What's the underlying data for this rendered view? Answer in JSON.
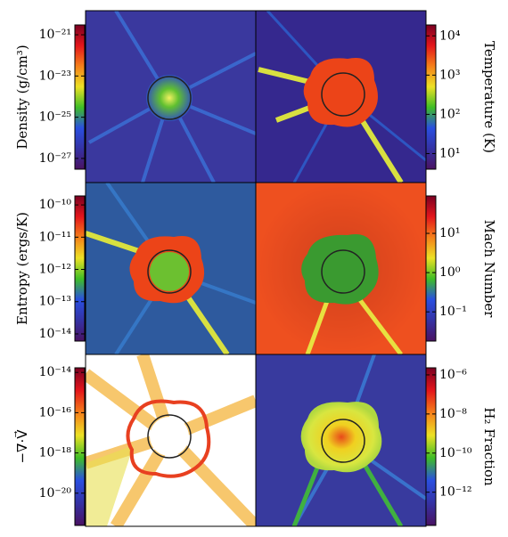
{
  "chart_data": [
    {
      "type": "colorbar",
      "label": "Density (g/cm³)",
      "side": "left",
      "log_scale": true,
      "ylim": [
        3e-28,
        3e-21
      ],
      "yticks": [
        {
          "value": 1e-21,
          "label": "10⁻²¹"
        },
        {
          "value": 1e-23,
          "label": "10⁻²³"
        },
        {
          "value": 1e-25,
          "label": "10⁻²⁵"
        },
        {
          "value": 1e-27,
          "label": "10⁻²⁷"
        }
      ],
      "colors": [
        "#7a0022",
        "#e3151b",
        "#f5801a",
        "#ece125",
        "#3fbe26",
        "#2a4fe0",
        "#3432a4",
        "#4a1262"
      ]
    },
    {
      "type": "colorbar",
      "label": "Temperature (K)",
      "side": "right",
      "log_scale": true,
      "ylim": [
        4,
        19000
      ],
      "yticks": [
        {
          "value": 10000,
          "label": "10⁴"
        },
        {
          "value": 1000,
          "label": "10³"
        },
        {
          "value": 100,
          "label": "10²"
        },
        {
          "value": 10,
          "label": "10¹"
        }
      ],
      "colors": [
        "#7a0022",
        "#e3151b",
        "#f5801a",
        "#ece125",
        "#3fbe26",
        "#2a4fe0",
        "#3432a4",
        "#4a1262"
      ]
    },
    {
      "type": "colorbar",
      "label": "Entropy (ergs/K)",
      "side": "left",
      "log_scale": true,
      "ylim": [
        6e-15,
        1.9e-10
      ],
      "yticks": [
        {
          "value": 1e-10,
          "label": "10⁻¹⁰"
        },
        {
          "value": 1e-11,
          "label": "10⁻¹¹"
        },
        {
          "value": 1e-12,
          "label": "10⁻¹²"
        },
        {
          "value": 1e-13,
          "label": "10⁻¹³"
        },
        {
          "value": 1e-14,
          "label": "10⁻¹⁴"
        }
      ],
      "colors": [
        "#7a0022",
        "#e3151b",
        "#f5801a",
        "#ece125",
        "#3fbe26",
        "#2a4fe0",
        "#3432a4",
        "#4a1262"
      ]
    },
    {
      "type": "colorbar",
      "label": "Mach Number",
      "side": "right",
      "log_scale": true,
      "ylim": [
        0.018,
        90
      ],
      "yticks": [
        {
          "value": 10,
          "label": "10¹"
        },
        {
          "value": 1,
          "label": "10⁰"
        },
        {
          "value": 0.1,
          "label": "10⁻¹"
        }
      ],
      "colors": [
        "#7a0022",
        "#e3151b",
        "#f5801a",
        "#ece125",
        "#3fbe26",
        "#2a4fe0",
        "#3432a4",
        "#4a1262"
      ]
    },
    {
      "type": "colorbar",
      "label": "−∇·V⃗",
      "side": "left",
      "log_scale": true,
      "ylim": [
        2.5e-22,
        1.7e-14
      ],
      "yticks": [
        {
          "value": 1e-14,
          "label": "10⁻¹⁴"
        },
        {
          "value": 1e-16,
          "label": "10⁻¹⁶"
        },
        {
          "value": 1e-18,
          "label": "10⁻¹⁸"
        },
        {
          "value": 1e-20,
          "label": "10⁻²⁰"
        }
      ],
      "colors": [
        "#7a0022",
        "#e3151b",
        "#f5801a",
        "#ece125",
        "#3fbe26",
        "#2a4fe0",
        "#3432a4",
        "#4a1262"
      ]
    },
    {
      "type": "colorbar",
      "label": "H₂ Fraction",
      "side": "right",
      "log_scale": true,
      "ylim": [
        2e-14,
        2.3e-06
      ],
      "yticks": [
        {
          "value": 1e-06,
          "label": "10⁻⁶"
        },
        {
          "value": 1e-08,
          "label": "10⁻⁸"
        },
        {
          "value": 1e-10,
          "label": "10⁻¹⁰"
        },
        {
          "value": 1e-12,
          "label": "10⁻¹²"
        }
      ],
      "colors": [
        "#7a0022",
        "#e3151b",
        "#f5801a",
        "#ece125",
        "#3fbe26",
        "#2a4fe0",
        "#3432a4",
        "#4a1262"
      ]
    }
  ]
}
